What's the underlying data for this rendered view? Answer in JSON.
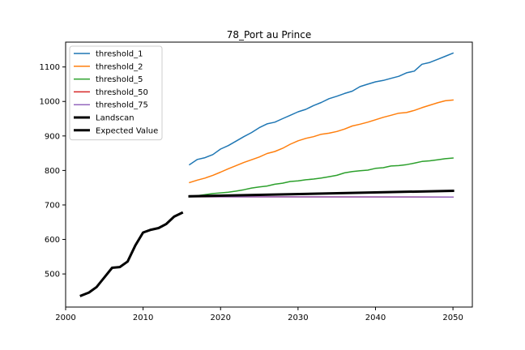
{
  "chart_data": {
    "type": "line",
    "title": "78_Port au Prince",
    "xlabel": "",
    "ylabel": "",
    "xlim": [
      2000,
      2052.5
    ],
    "ylim": [
      404,
      1172
    ],
    "xticks": [
      2000,
      2010,
      2020,
      2030,
      2040,
      2050
    ],
    "yticks": [
      500,
      600,
      700,
      800,
      900,
      1000,
      1100
    ],
    "grid": false,
    "legend_position": "upper-left",
    "series": [
      {
        "name": "threshold_1",
        "color": "#1f77b4",
        "linewidth": 1.5,
        "x": [
          2016,
          2017,
          2018,
          2019,
          2020,
          2021,
          2022,
          2023,
          2024,
          2025,
          2026,
          2027,
          2028,
          2029,
          2030,
          2031,
          2032,
          2033,
          2034,
          2035,
          2036,
          2037,
          2038,
          2039,
          2040,
          2041,
          2042,
          2043,
          2044,
          2045,
          2046,
          2047,
          2048,
          2049,
          2050
        ],
        "y": [
          817,
          832,
          837,
          846,
          862,
          872,
          885,
          898,
          910,
          924,
          935,
          940,
          950,
          960,
          970,
          977,
          988,
          997,
          1008,
          1015,
          1023,
          1030,
          1043,
          1050,
          1057,
          1061,
          1067,
          1073,
          1083,
          1088,
          1108,
          1113,
          1122,
          1131,
          1140
        ]
      },
      {
        "name": "threshold_2",
        "color": "#ff7f0e",
        "linewidth": 1.5,
        "x": [
          2016,
          2017,
          2018,
          2019,
          2020,
          2021,
          2022,
          2023,
          2024,
          2025,
          2026,
          2027,
          2028,
          2029,
          2030,
          2031,
          2032,
          2033,
          2034,
          2035,
          2036,
          2037,
          2038,
          2039,
          2040,
          2041,
          2042,
          2043,
          2044,
          2045,
          2046,
          2047,
          2048,
          2049,
          2050
        ],
        "y": [
          765,
          772,
          778,
          786,
          795,
          805,
          814,
          823,
          831,
          839,
          849,
          855,
          864,
          876,
          886,
          893,
          898,
          905,
          908,
          913,
          920,
          929,
          934,
          940,
          947,
          954,
          960,
          966,
          968,
          974,
          982,
          989,
          996,
          1002,
          1004
        ]
      },
      {
        "name": "threshold_5",
        "color": "#2ca02c",
        "linewidth": 1.5,
        "x": [
          2016,
          2017,
          2018,
          2019,
          2020,
          2021,
          2022,
          2023,
          2024,
          2025,
          2026,
          2027,
          2028,
          2029,
          2030,
          2031,
          2032,
          2033,
          2034,
          2035,
          2036,
          2037,
          2038,
          2039,
          2040,
          2041,
          2042,
          2043,
          2044,
          2045,
          2046,
          2047,
          2048,
          2049,
          2050
        ],
        "y": [
          725,
          727,
          730,
          733,
          735,
          737,
          740,
          744,
          749,
          752,
          755,
          760,
          763,
          768,
          770,
          773,
          775,
          778,
          782,
          786,
          793,
          797,
          799,
          801,
          806,
          808,
          813,
          814,
          817,
          821,
          826,
          828,
          831,
          834,
          836
        ]
      },
      {
        "name": "threshold_50",
        "color": "#d62728",
        "linewidth": 1.5,
        "x": [
          2016,
          2050
        ],
        "y": [
          724,
          723
        ]
      },
      {
        "name": "threshold_75",
        "color": "#9467bd",
        "linewidth": 1.5,
        "x": [
          2016,
          2050
        ],
        "y": [
          724,
          723
        ]
      },
      {
        "name": "Landscan",
        "color": "#000000",
        "linewidth": 3,
        "x": [
          2002,
          2003,
          2004,
          2005,
          2006,
          2007,
          2008,
          2009,
          2010,
          2011,
          2012,
          2013,
          2014,
          2015
        ],
        "y": [
          437,
          446,
          462,
          490,
          518,
          520,
          536,
          583,
          620,
          628,
          633,
          645,
          666,
          677
        ]
      },
      {
        "name": "Expected Value",
        "color": "#000000",
        "linewidth": 3,
        "x": [
          2016,
          2050
        ],
        "y": [
          725,
          741
        ]
      }
    ]
  }
}
